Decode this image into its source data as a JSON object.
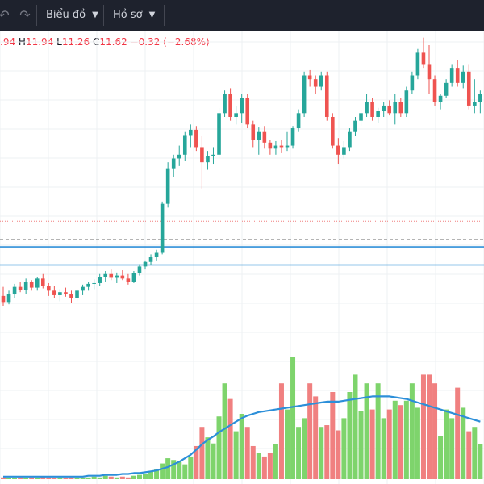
{
  "toolbar": {
    "undo_icon": "undo-icon",
    "redo_icon": "redo-icon",
    "chart_menu_label": "Biểu đồ",
    "profile_menu_label": "Hồ sơ",
    "chevron_icon": "chevron-down-icon"
  },
  "legend": {
    "open_value": ".94",
    "high_key": "H",
    "high_value": "11.94",
    "low_key": "L",
    "low_value": "11.26",
    "close_key": "C",
    "close_value": "11.62",
    "change": "−0.32 (−2.68%)"
  },
  "colors": {
    "up": "#26a69a",
    "down": "#ef5350",
    "vol_up": "#7ed46c",
    "vol_down": "#f08080",
    "ma": "#2c8fd9",
    "hline": "#2f8fd8",
    "dotted_red": "#f07f7f",
    "dashed_gray": "#a9a9a9",
    "grid": "#eef0f3",
    "toolbar_bg": "#1e222d"
  },
  "chart_data": {
    "type": "candlestick",
    "price_range": [
      9.55,
      14.1
    ],
    "horizontal_levels": [
      {
        "price": 11.62,
        "style": "dotted",
        "color": "#f07f7f"
      },
      {
        "price": 11.38,
        "style": "dashed",
        "color": "#a9a9a9"
      },
      {
        "price": 11.28,
        "style": "solid",
        "color": "#2f8fd8"
      },
      {
        "price": 11.04,
        "style": "solid",
        "color": "#2f8fd8"
      }
    ],
    "candles": [
      [
        10.63,
        10.75,
        10.5,
        10.55
      ],
      [
        10.55,
        10.7,
        10.52,
        10.65
      ],
      [
        10.65,
        10.79,
        10.6,
        10.75
      ],
      [
        10.75,
        10.82,
        10.68,
        10.71
      ],
      [
        10.71,
        10.86,
        10.66,
        10.82
      ],
      [
        10.82,
        10.84,
        10.7,
        10.74
      ],
      [
        10.74,
        10.88,
        10.7,
        10.86
      ],
      [
        10.86,
        10.92,
        10.73,
        10.76
      ],
      [
        10.76,
        10.8,
        10.63,
        10.7
      ],
      [
        10.7,
        10.76,
        10.6,
        10.64
      ],
      [
        10.64,
        10.72,
        10.56,
        10.68
      ],
      [
        10.68,
        10.74,
        10.62,
        10.66
      ],
      [
        10.66,
        10.7,
        10.54,
        10.6
      ],
      [
        10.6,
        10.72,
        10.56,
        10.7
      ],
      [
        10.7,
        10.78,
        10.64,
        10.75
      ],
      [
        10.75,
        10.82,
        10.7,
        10.79
      ],
      [
        10.79,
        10.85,
        10.72,
        10.8
      ],
      [
        10.8,
        10.92,
        10.76,
        10.88
      ],
      [
        10.88,
        10.96,
        10.82,
        10.92
      ],
      [
        10.92,
        10.98,
        10.84,
        10.87
      ],
      [
        10.87,
        10.94,
        10.8,
        10.9
      ],
      [
        10.9,
        10.97,
        10.84,
        10.86
      ],
      [
        10.86,
        10.92,
        10.78,
        10.82
      ],
      [
        10.82,
        10.96,
        10.8,
        10.93
      ],
      [
        10.93,
        11.05,
        10.9,
        11.02
      ],
      [
        11.02,
        11.1,
        10.98,
        11.08
      ],
      [
        11.08,
        11.18,
        11.04,
        11.15
      ],
      [
        11.15,
        11.24,
        11.1,
        11.2
      ],
      [
        11.2,
        11.88,
        11.18,
        11.85
      ],
      [
        11.85,
        12.4,
        11.8,
        12.32
      ],
      [
        12.32,
        12.5,
        12.2,
        12.45
      ],
      [
        12.45,
        12.62,
        12.35,
        12.5
      ],
      [
        12.5,
        12.8,
        12.42,
        12.76
      ],
      [
        12.76,
        12.9,
        12.6,
        12.83
      ],
      [
        12.83,
        12.88,
        12.55,
        12.6
      ],
      [
        12.6,
        12.75,
        12.05,
        12.4
      ],
      [
        12.4,
        12.55,
        12.3,
        12.48
      ],
      [
        12.48,
        12.6,
        12.38,
        12.5
      ],
      [
        12.5,
        13.12,
        12.45,
        13.05
      ],
      [
        13.05,
        13.35,
        13.0,
        13.3
      ],
      [
        13.3,
        13.38,
        12.95,
        13.0
      ],
      [
        13.0,
        13.15,
        12.9,
        13.05
      ],
      [
        13.05,
        13.3,
        12.92,
        13.25
      ],
      [
        13.25,
        13.3,
        12.85,
        12.9
      ],
      [
        12.9,
        12.95,
        12.6,
        12.7
      ],
      [
        12.7,
        12.86,
        12.5,
        12.8
      ],
      [
        12.8,
        12.88,
        12.58,
        12.66
      ],
      [
        12.66,
        12.7,
        12.5,
        12.58
      ],
      [
        12.58,
        12.68,
        12.5,
        12.62
      ],
      [
        12.62,
        12.7,
        12.52,
        12.6
      ],
      [
        12.6,
        12.8,
        12.55,
        12.62
      ],
      [
        12.62,
        12.88,
        12.58,
        12.85
      ],
      [
        12.85,
        13.1,
        12.8,
        13.05
      ],
      [
        13.05,
        13.6,
        13.0,
        13.55
      ],
      [
        13.55,
        13.62,
        13.4,
        13.5
      ],
      [
        13.5,
        13.55,
        13.3,
        13.4
      ],
      [
        13.4,
        13.6,
        13.35,
        13.55
      ],
      [
        13.55,
        13.6,
        12.95,
        13.0
      ],
      [
        13.0,
        13.05,
        12.58,
        12.62
      ],
      [
        12.62,
        12.72,
        12.38,
        12.5
      ],
      [
        12.5,
        12.68,
        12.45,
        12.6
      ],
      [
        12.6,
        12.85,
        12.55,
        12.8
      ],
      [
        12.8,
        13.0,
        12.75,
        12.95
      ],
      [
        12.95,
        13.1,
        12.88,
        13.05
      ],
      [
        13.05,
        13.3,
        13.0,
        13.2
      ],
      [
        13.2,
        13.25,
        12.95,
        13.0
      ],
      [
        13.0,
        13.12,
        12.92,
        13.08
      ],
      [
        13.08,
        13.2,
        13.0,
        13.15
      ],
      [
        13.15,
        13.22,
        13.02,
        13.05
      ],
      [
        13.05,
        13.3,
        12.9,
        13.2
      ],
      [
        13.2,
        13.25,
        13.0,
        13.05
      ],
      [
        13.05,
        13.4,
        13.0,
        13.35
      ],
      [
        13.35,
        13.6,
        13.3,
        13.55
      ],
      [
        13.55,
        13.9,
        13.5,
        13.85
      ],
      [
        13.85,
        14.05,
        13.65,
        13.7
      ],
      [
        13.7,
        13.95,
        13.3,
        13.5
      ],
      [
        13.5,
        13.55,
        13.15,
        13.2
      ],
      [
        13.2,
        13.3,
        13.1,
        13.28
      ],
      [
        13.28,
        13.5,
        13.25,
        13.45
      ],
      [
        13.45,
        13.7,
        13.4,
        13.65
      ],
      [
        13.65,
        13.75,
        13.4,
        13.45
      ],
      [
        13.45,
        13.68,
        13.38,
        13.6
      ],
      [
        13.6,
        13.7,
        13.1,
        13.15
      ],
      [
        13.15,
        13.5,
        13.05,
        13.2
      ],
      [
        13.2,
        13.35,
        13.05,
        13.3
      ]
    ],
    "volumes": [
      2,
      1,
      1,
      2,
      1,
      2,
      1,
      3,
      2,
      1,
      2,
      1,
      2,
      1,
      2,
      2,
      3,
      2,
      4,
      3,
      2,
      3,
      2,
      4,
      5,
      6,
      9,
      12,
      18,
      24,
      22,
      20,
      17,
      26,
      38,
      60,
      48,
      41,
      72,
      110,
      92,
      55,
      75,
      60,
      38,
      30,
      26,
      30,
      40,
      110,
      80,
      140,
      60,
      70,
      110,
      95,
      60,
      62,
      100,
      56,
      70,
      100,
      120,
      78,
      110,
      80,
      110,
      70,
      80,
      90,
      85,
      90,
      110,
      82,
      120,
      120,
      110,
      50,
      80,
      70,
      105,
      82,
      55,
      60,
      40
    ],
    "volume_ma": [
      3,
      3,
      3,
      3,
      3,
      3,
      3,
      3,
      3,
      3,
      3,
      3,
      3,
      3,
      3,
      4,
      4,
      4,
      5,
      5,
      5,
      6,
      6,
      7,
      7,
      8,
      9,
      10,
      12,
      14,
      17,
      20,
      24,
      28,
      34,
      40,
      45,
      49,
      54,
      58,
      62,
      66,
      70,
      73,
      75,
      77,
      78,
      79,
      80,
      81,
      82,
      83,
      84,
      85,
      86,
      87,
      88,
      89,
      89,
      89,
      90,
      91,
      92,
      93,
      94,
      95,
      95,
      95,
      95,
      94,
      93,
      92,
      90,
      88,
      86,
      84,
      82,
      80,
      78,
      76,
      74,
      72,
      70,
      68,
      66
    ]
  }
}
